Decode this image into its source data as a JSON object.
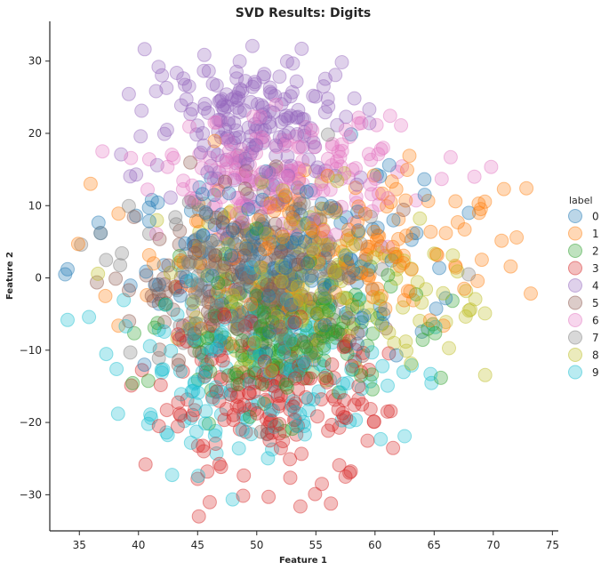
{
  "chart_data": {
    "type": "scatter",
    "title": "SVD Results: Digits",
    "xlabel": "Feature 1",
    "ylabel": "Feature 2",
    "xlim": [
      32.5,
      75.5
    ],
    "ylim": [
      -35,
      35.5
    ],
    "xticks": [
      35,
      40,
      45,
      50,
      55,
      60,
      65,
      70,
      75
    ],
    "yticks": [
      -30,
      -20,
      -10,
      0,
      10,
      20,
      30
    ],
    "grid": false,
    "legend_title": "label",
    "legend_position": "right",
    "series": [
      {
        "name": "0",
        "color": "#1f77b4",
        "center": [
          52,
          2
        ],
        "spread": [
          6,
          6
        ],
        "count": 178,
        "outliers": [
          [
            33.8,
            0.5
          ],
          [
            36.8,
            6.2
          ],
          [
            39.8,
            8.6
          ],
          [
            40.5,
            -12.0
          ],
          [
            64.2,
            11.5
          ],
          [
            63.5,
            6.2
          ],
          [
            61.2,
            15.6
          ]
        ]
      },
      {
        "name": "1",
        "color": "#ff7f0e",
        "center": [
          55,
          4
        ],
        "spread": [
          7,
          5.5
        ],
        "count": 182,
        "outliers": [
          [
            34.9,
            4.7
          ],
          [
            37.2,
            -2.5
          ],
          [
            38.3,
            -6.6
          ],
          [
            70.9,
            12.3
          ],
          [
            72.8,
            12.4
          ],
          [
            68.8,
            9.0
          ],
          [
            66.8,
            10.6
          ]
        ]
      },
      {
        "name": "2",
        "color": "#2ca02c",
        "center": [
          52,
          -8
        ],
        "spread": [
          5,
          5
        ],
        "count": 177,
        "outliers": []
      },
      {
        "name": "3",
        "color": "#d62728",
        "center": [
          51,
          -17
        ],
        "spread": [
          5,
          5.5
        ],
        "count": 183,
        "outliers": [
          [
            40.6,
            -25.8
          ],
          [
            45.0,
            -27.8
          ],
          [
            51.0,
            -30.3
          ],
          [
            55.5,
            -28.5
          ],
          [
            57.5,
            -27.5
          ]
        ]
      },
      {
        "name": "4",
        "color": "#9467bd",
        "center": [
          50,
          22
        ],
        "spread": [
          4.5,
          4.5
        ],
        "count": 181,
        "outliers": [
          [
            53.8,
            31.7
          ],
          [
            39.8,
            14.3
          ],
          [
            41.7,
            29.2
          ]
        ]
      },
      {
        "name": "5",
        "color": "#8c564b",
        "center": [
          50,
          -1
        ],
        "spread": [
          5,
          6
        ],
        "count": 182,
        "outliers": []
      },
      {
        "name": "6",
        "color": "#e377c2",
        "center": [
          52,
          14
        ],
        "spread": [
          5,
          4
        ],
        "count": 181,
        "outliers": [
          [
            62.2,
            21.1
          ],
          [
            66.4,
            16.7
          ],
          [
            68.4,
            14.0
          ]
        ]
      },
      {
        "name": "7",
        "color": "#7f7f7f",
        "center": [
          50,
          0
        ],
        "spread": [
          5,
          6
        ],
        "count": 179,
        "outliers": [
          [
            36.8,
            6.2
          ],
          [
            38.6,
            3.4
          ]
        ]
      },
      {
        "name": "8",
        "color": "#bcbd22",
        "center": [
          55,
          -1
        ],
        "spread": [
          6,
          6
        ],
        "count": 174,
        "outliers": [
          [
            69.3,
            -4.9
          ],
          [
            67.7,
            -1.8
          ],
          [
            66.0,
            -6.1
          ],
          [
            62.6,
            -8.8
          ]
        ]
      },
      {
        "name": "9",
        "color": "#17becf",
        "center": [
          50,
          -13
        ],
        "spread": [
          6,
          6
        ],
        "count": 180,
        "outliers": [
          [
            41.0,
            -18.9
          ],
          [
            62.5,
            -21.9
          ],
          [
            64.7,
            -13.3
          ],
          [
            63.1,
            -12.1
          ],
          [
            65.1,
            -6.8
          ]
        ]
      }
    ]
  }
}
